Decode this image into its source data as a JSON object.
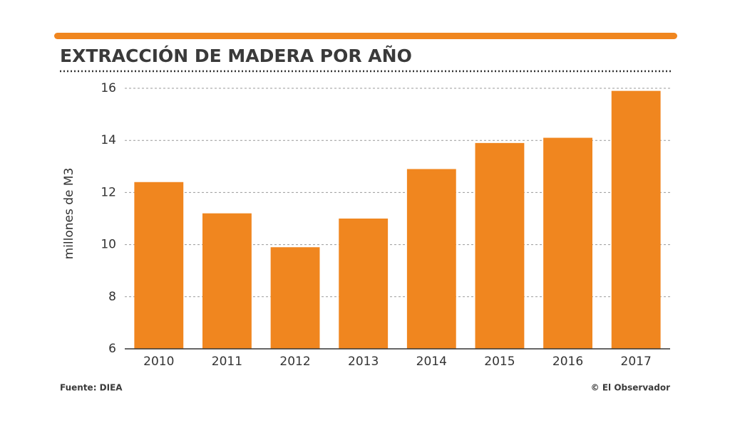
{
  "chart_data": {
    "type": "bar",
    "title": "EXTRACCIÓN DE MADERA POR AÑO",
    "y_label": "millones de M3",
    "categories": [
      "2010",
      "2011",
      "2012",
      "2013",
      "2014",
      "2015",
      "2016",
      "2017"
    ],
    "values": [
      12.4,
      11.2,
      9.9,
      11.0,
      12.9,
      13.9,
      14.1,
      15.9
    ],
    "color": "#f0861f",
    "ylim": [
      6,
      16
    ],
    "yticks": [
      6,
      8,
      10,
      12,
      14,
      16
    ],
    "grid": true,
    "source": "Fuente: DIEA",
    "credit": "© El Observador"
  }
}
